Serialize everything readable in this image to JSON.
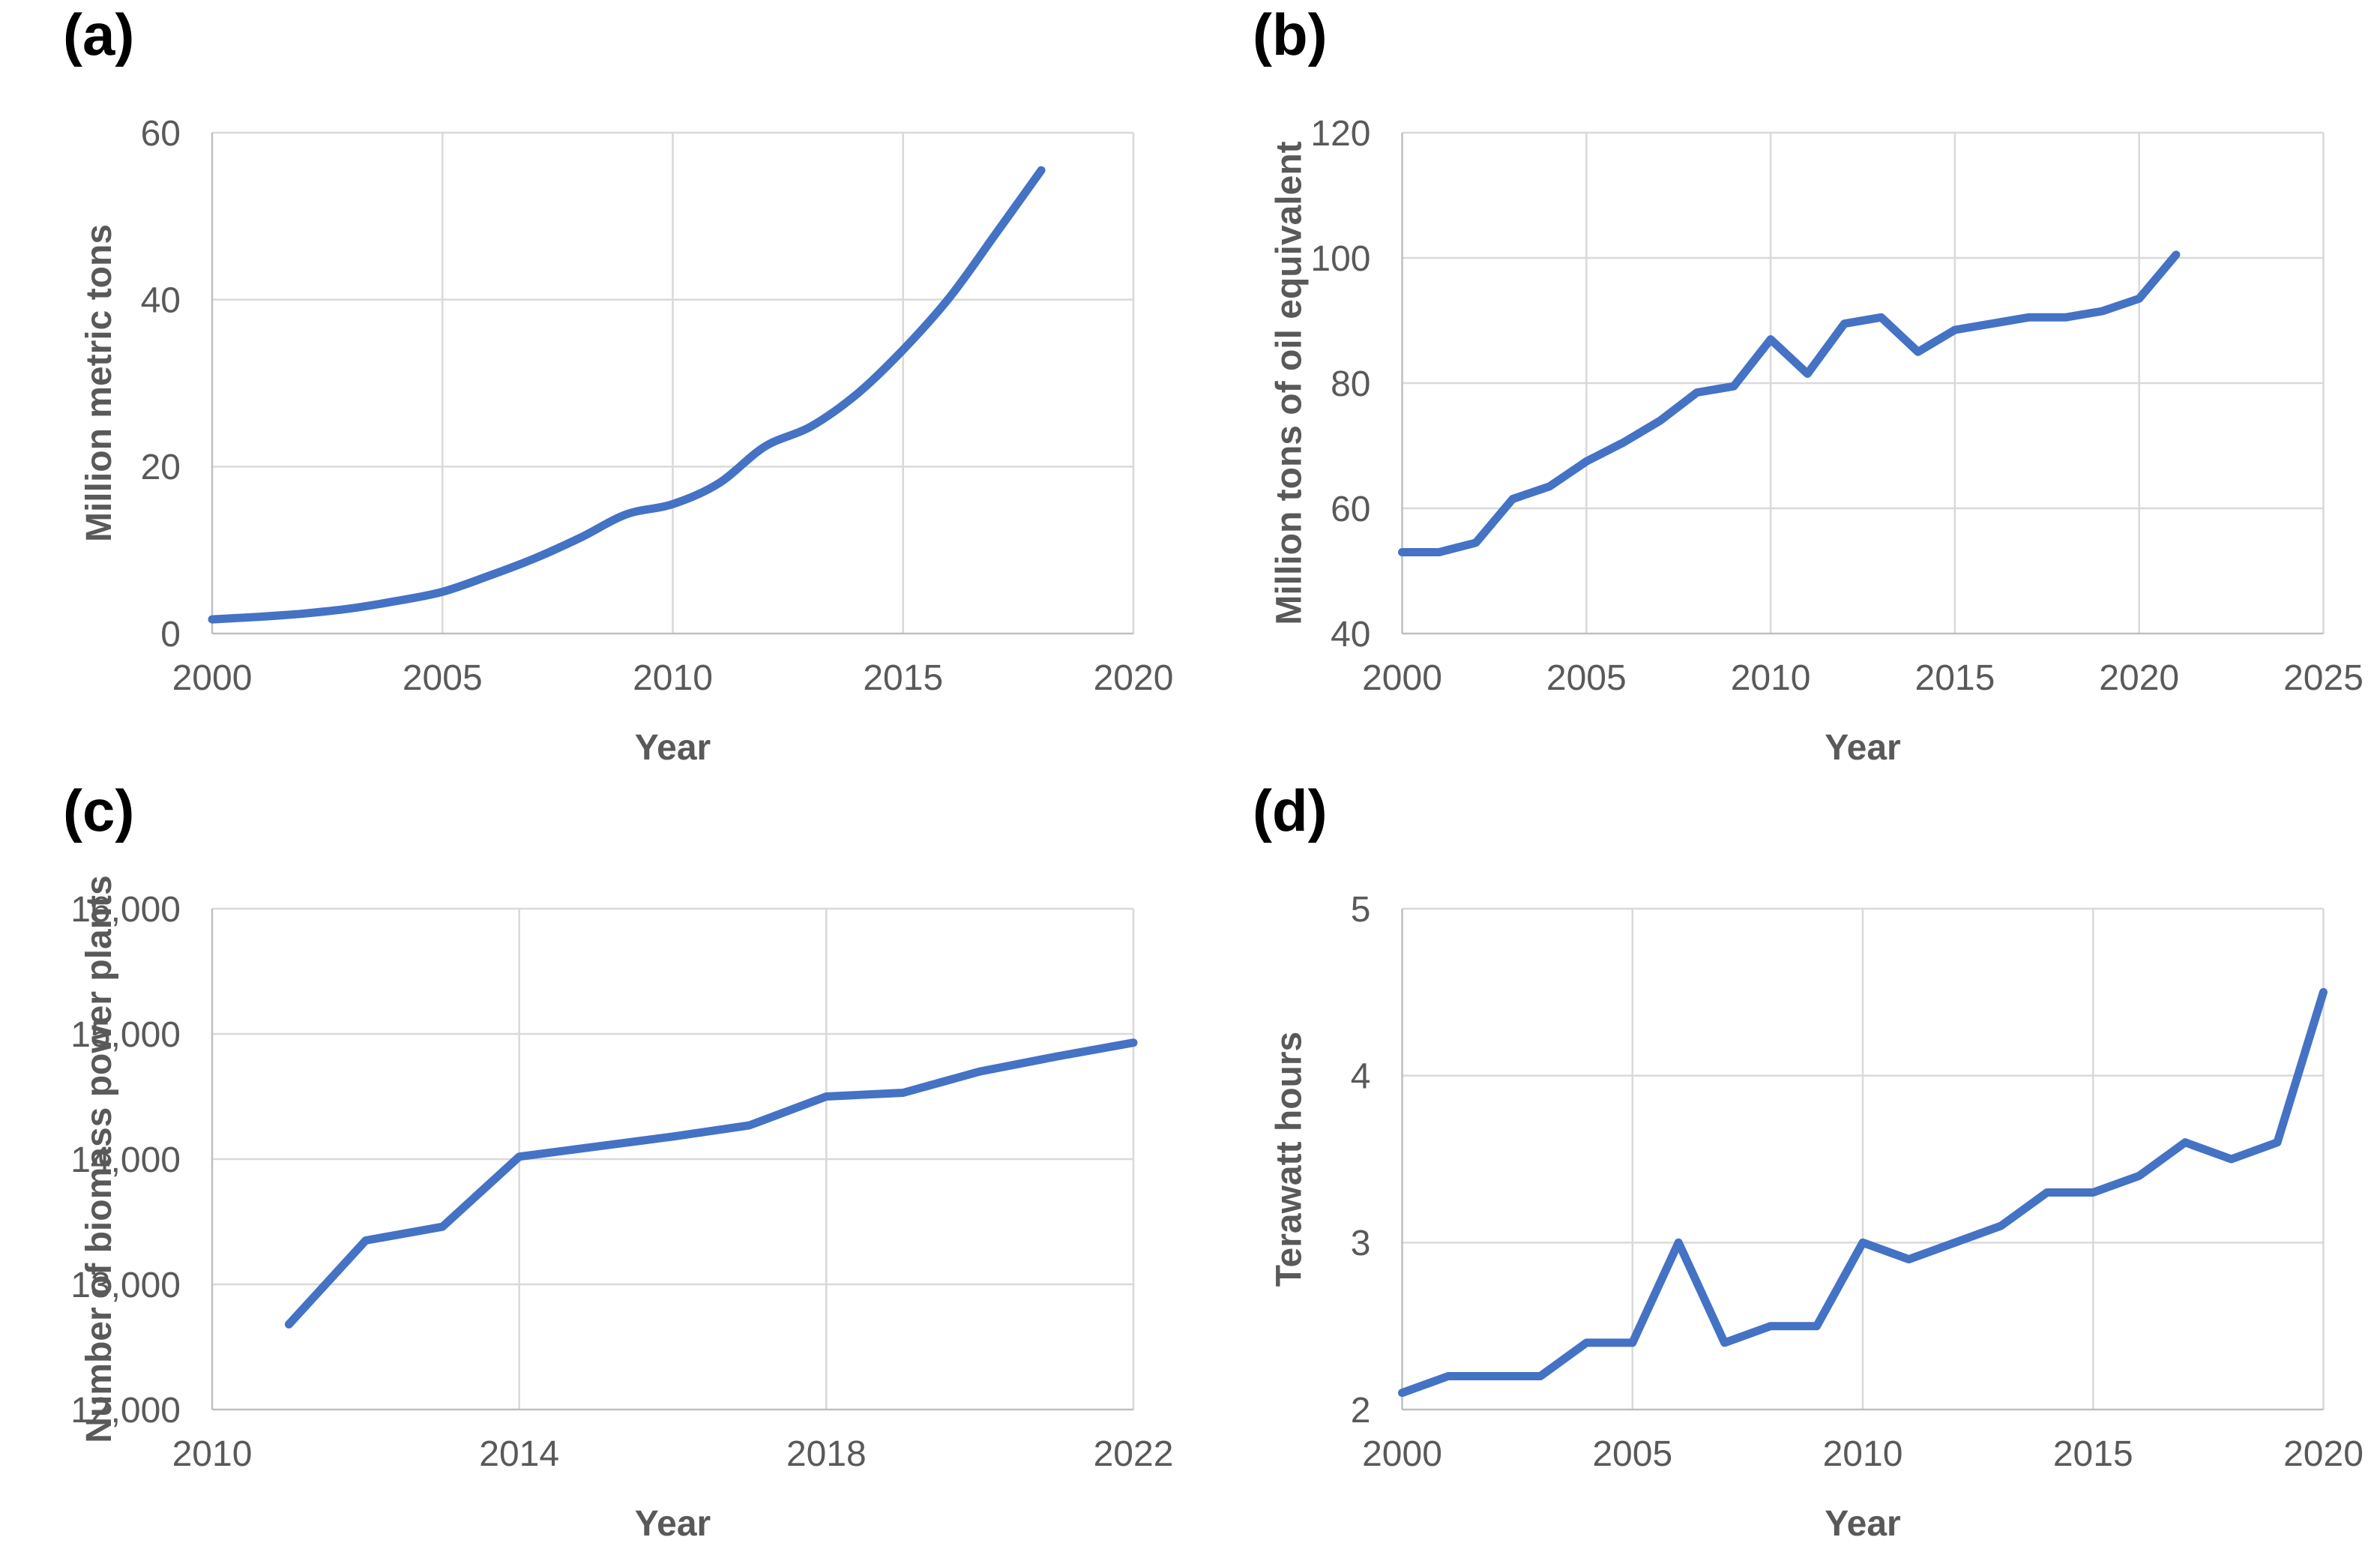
{
  "style": {
    "line_color": "#4472C4",
    "grid_color": "#D9D9D9",
    "axis_color": "#BFBFBF",
    "label_color": "#595959",
    "panel_label_color": "#000000",
    "background": "#FFFFFF"
  },
  "chart_data": [
    {
      "panel_label": "(a)",
      "type": "line",
      "smooth": true,
      "xlabel": "Year",
      "ylabel": "Million metric tons",
      "xlim": [
        2000,
        2020
      ],
      "ylim": [
        0,
        60
      ],
      "xticks": [
        2000,
        2005,
        2010,
        2015,
        2020
      ],
      "xtick_labels": [
        "2000",
        "2005",
        "2010",
        "2015",
        "2020"
      ],
      "yticks": [
        0,
        20,
        40,
        60
      ],
      "ytick_labels": [
        "0",
        "20",
        "40",
        "60"
      ],
      "grid": true,
      "legend": "none",
      "x": [
        2000,
        2001,
        2002,
        2003,
        2004,
        2005,
        2006,
        2007,
        2008,
        2009,
        2010,
        2011,
        2012,
        2013,
        2014,
        2015,
        2016,
        2017,
        2018
      ],
      "y": [
        1.7,
        2.0,
        2.4,
        3.0,
        3.9,
        5.0,
        6.9,
        9.0,
        11.5,
        14.3,
        15.5,
        18.0,
        22.4,
        24.8,
        28.7,
        34.0,
        40.2,
        47.8,
        55.5
      ]
    },
    {
      "panel_label": "(b)",
      "type": "line",
      "smooth": false,
      "xlabel": "Year",
      "ylabel": "Million tons of oil equivalent",
      "xlim": [
        2000,
        2025
      ],
      "ylim": [
        40,
        120
      ],
      "xticks": [
        2000,
        2005,
        2010,
        2015,
        2020,
        2025
      ],
      "xtick_labels": [
        "2000",
        "2005",
        "2010",
        "2015",
        "2020",
        "2025"
      ],
      "yticks": [
        40,
        60,
        80,
        100,
        120
      ],
      "ytick_labels": [
        "40",
        "60",
        "80",
        "100",
        "120"
      ],
      "grid": true,
      "legend": "none",
      "x": [
        2000,
        2001,
        2002,
        2003,
        2004,
        2005,
        2006,
        2007,
        2008,
        2009,
        2010,
        2011,
        2012,
        2013,
        2014,
        2015,
        2016,
        2017,
        2018,
        2019,
        2020,
        2021
      ],
      "y": [
        53,
        53,
        54.5,
        61.5,
        63.5,
        67.5,
        70.5,
        74,
        78.5,
        79.5,
        87,
        81.5,
        89.5,
        90.5,
        85,
        88.5,
        89.5,
        90.5,
        90.5,
        91.5,
        93.5,
        100.5
      ]
    },
    {
      "panel_label": "(c)",
      "type": "line",
      "smooth": false,
      "xlabel": "Year",
      "ylabel": "Number of biomass power plants",
      "xlim": [
        2010,
        2022
      ],
      "ylim": [
        12000,
        16000
      ],
      "xticks": [
        2010,
        2014,
        2018,
        2022
      ],
      "xtick_labels": [
        "2010",
        "2014",
        "2018",
        "2022"
      ],
      "yticks": [
        12000,
        13000,
        14000,
        15000,
        16000
      ],
      "ytick_labels": [
        "12,000",
        "13,000",
        "14,000",
        "15,000",
        "16,000"
      ],
      "grid": true,
      "legend": "none",
      "x": [
        2011,
        2012,
        2013,
        2014,
        2015,
        2016,
        2017,
        2018,
        2019,
        2020,
        2021,
        2022
      ],
      "y": [
        12680,
        13350,
        13460,
        14020,
        14100,
        14180,
        14270,
        14500,
        14530,
        14700,
        14820,
        14930
      ]
    },
    {
      "panel_label": "(d)",
      "type": "line",
      "smooth": false,
      "xlabel": "Year",
      "ylabel": "Terawatt hours",
      "xlim": [
        2000,
        2020
      ],
      "ylim": [
        2,
        5
      ],
      "xticks": [
        2000,
        2005,
        2010,
        2015,
        2020
      ],
      "xtick_labels": [
        "2000",
        "2005",
        "2010",
        "2015",
        "2020"
      ],
      "yticks": [
        2,
        3,
        4,
        5
      ],
      "ytick_labels": [
        "2",
        "3",
        "4",
        "5"
      ],
      "grid": true,
      "legend": "none",
      "x": [
        2000,
        2001,
        2002,
        2003,
        2004,
        2005,
        2006,
        2007,
        2008,
        2009,
        2010,
        2011,
        2012,
        2013,
        2014,
        2015,
        2016,
        2017,
        2018,
        2019,
        2020
      ],
      "y": [
        2.1,
        2.2,
        2.2,
        2.2,
        2.4,
        2.4,
        3.0,
        2.4,
        2.5,
        2.5,
        3.0,
        2.9,
        3.0,
        3.1,
        3.3,
        3.3,
        3.4,
        3.6,
        3.5,
        3.6,
        4.5
      ]
    }
  ]
}
